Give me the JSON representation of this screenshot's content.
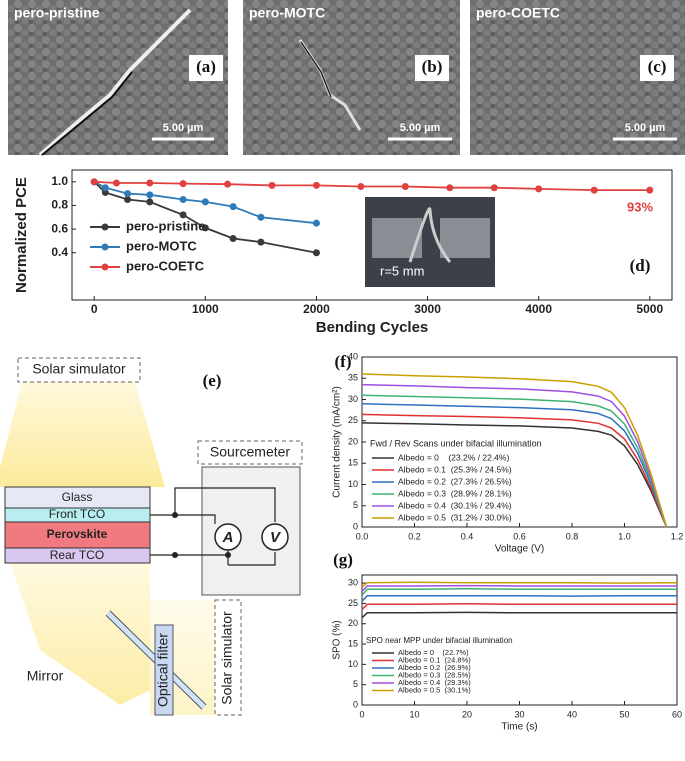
{
  "images": [
    {
      "label": "pero-pristine",
      "panel": "(a)",
      "scale": "5.00 µm"
    },
    {
      "label": "pero-MOTC",
      "panel": "(b)",
      "scale": "5.00 µm"
    },
    {
      "label": "pero-COETC",
      "panel": "(c)",
      "scale": "5.00 µm"
    }
  ],
  "schematic": {
    "panel": "(e)",
    "top_source": "Solar simulator",
    "sourcemeter": "Sourcemeter",
    "layers": [
      "Glass",
      "Front TCO",
      "Perovskite",
      "Rear TCO"
    ],
    "ammeter": "A",
    "voltmeter": "V",
    "mirror": "Mirror",
    "filter": "Optical filter",
    "bottom_source": "Solar simulator"
  },
  "chart_data": [
    {
      "type": "line",
      "panel": "(d)",
      "x_label": "Bending Cycles",
      "y_label": "Normalized PCE",
      "annotation": "93%",
      "inset_label": "r=5 mm",
      "xlim": [
        -200,
        5200
      ],
      "xticks": [
        0,
        1000,
        2000,
        3000,
        4000,
        5000
      ],
      "ylim": [
        0,
        1.1
      ],
      "yticks": [
        0.4,
        0.6,
        0.8,
        {
          "value": 1,
          "label": "1.0"
        }
      ],
      "series": [
        {
          "name": "pero-pristine",
          "color": "#3a3a3a",
          "x": [
            0,
            100,
            300,
            500,
            800,
            1000,
            1250,
            1500,
            2000
          ],
          "values": [
            1.0,
            0.91,
            0.85,
            0.83,
            0.72,
            0.61,
            0.52,
            0.49,
            0.4
          ]
        },
        {
          "name": "pero-MOTC",
          "color": "#2e7bb8",
          "x": [
            0,
            100,
            300,
            500,
            800,
            1000,
            1250,
            1500,
            2000
          ],
          "values": [
            1.0,
            0.95,
            0.9,
            0.89,
            0.85,
            0.83,
            0.79,
            0.7,
            0.65
          ]
        },
        {
          "name": "pero-COETC",
          "color": "#e0403f",
          "x": [
            0,
            200,
            500,
            800,
            1200,
            1600,
            2000,
            2400,
            2800,
            3200,
            3600,
            4000,
            4500,
            5000
          ],
          "values": [
            1.0,
            0.99,
            0.99,
            0.985,
            0.98,
            0.97,
            0.97,
            0.96,
            0.96,
            0.95,
            0.95,
            0.94,
            0.93,
            0.93
          ]
        }
      ]
    },
    {
      "type": "line",
      "panel": "(f)",
      "x_label": "Voltage (V)",
      "y_label": "Current density (mA/cm²)",
      "legend_title": "Fwd / Rev Scans under bifacial illumination",
      "xlim": [
        0,
        1.2
      ],
      "xticks": [
        {
          "value": 0,
          "label": "0.0"
        },
        0.2,
        0.4,
        0.6,
        0.8,
        {
          "value": 1,
          "label": "1.0"
        },
        1.2
      ],
      "ylim": [
        0,
        40
      ],
      "yticks": [
        0,
        5,
        10,
        15,
        20,
        25,
        30,
        35,
        40
      ],
      "x": [
        0,
        0.2,
        0.4,
        0.6,
        0.8,
        0.9,
        0.95,
        1.0,
        1.05,
        1.1,
        1.16
      ],
      "series": [
        {
          "name": "Albedo = 0    (23.2% / 22.4%)",
          "color": "#333333",
          "values": [
            24.5,
            24.3,
            24.0,
            23.8,
            23.3,
            22.5,
            21.6,
            19.1,
            14.7,
            8.6,
            0
          ]
        },
        {
          "name": "Albedo = 0.1  (25.3% / 24.5%)",
          "color": "#e03030",
          "values": [
            26.5,
            26.2,
            26.0,
            25.7,
            25.2,
            24.4,
            23.3,
            20.7,
            15.9,
            9.3,
            0
          ]
        },
        {
          "name": "Albedo = 0.2  (27.3% / 26.5%)",
          "color": "#2f6fc0",
          "values": [
            29,
            28.7,
            28.4,
            28.1,
            27.6,
            26.7,
            25.5,
            22.6,
            17.4,
            10.2,
            0
          ]
        },
        {
          "name": "Albedo = 0.3  (28.9% / 28.1%)",
          "color": "#3cb371",
          "values": [
            31,
            30.7,
            30.4,
            30.1,
            29.5,
            28.5,
            27.3,
            24.2,
            18.6,
            10.9,
            0
          ]
        },
        {
          "name": "Albedo = 0.4  (30.1% / 29.4%)",
          "color": "#a050e0",
          "values": [
            33.5,
            33.2,
            32.8,
            32.5,
            31.8,
            30.8,
            29.5,
            26.1,
            20.1,
            11.7,
            0
          ]
        },
        {
          "name": "Albedo = 0.5  (31.2% / 30.0%)",
          "color": "#c8a000",
          "values": [
            36,
            35.6,
            35.3,
            34.9,
            34.2,
            33.1,
            31.7,
            28.1,
            21.6,
            12.6,
            0
          ]
        }
      ]
    },
    {
      "type": "line",
      "panel": "(g)",
      "x_label": "Time (s)",
      "y_label": "SPO (%)",
      "legend_title": "SPO near MPP under bifacial illumination",
      "xlim": [
        0,
        60
      ],
      "xticks": [
        0,
        10,
        20,
        30,
        40,
        50,
        60
      ],
      "ylim": [
        0,
        32
      ],
      "yticks": [
        0,
        5,
        10,
        15,
        20,
        25,
        30
      ],
      "x": [
        0,
        1,
        10,
        20,
        30,
        40,
        50,
        60
      ],
      "series": [
        {
          "name": "Albedo = 0    (22.7%)",
          "color": "#333333",
          "values": [
            21.5,
            22.7,
            22.7,
            22.8,
            22.7,
            22.7,
            22.7,
            22.7
          ]
        },
        {
          "name": "Albedo = 0.1  (24.8%)",
          "color": "#e03030",
          "values": [
            23.5,
            24.8,
            24.8,
            24.9,
            24.8,
            24.8,
            24.8,
            24.8
          ]
        },
        {
          "name": "Albedo = 0.2  (26.9%)",
          "color": "#2f6fc0",
          "values": [
            25.5,
            26.9,
            26.9,
            26.9,
            26.9,
            26.8,
            26.9,
            26.9
          ]
        },
        {
          "name": "Albedo = 0.3  (28.5%)",
          "color": "#3cb371",
          "values": [
            27,
            28.5,
            28.5,
            28.6,
            28.5,
            28.5,
            28.5,
            28.5
          ]
        },
        {
          "name": "Albedo = 0.4  (29.3%)",
          "color": "#a050e0",
          "values": [
            28,
            29.3,
            29.3,
            29.4,
            29.3,
            29.3,
            29.3,
            29.3
          ]
        },
        {
          "name": "Albedo = 0.5  (30.1%)",
          "color": "#c8a000",
          "values": [
            29,
            30.1,
            30.2,
            30.1,
            30.1,
            30.1,
            30.0,
            30.1
          ]
        }
      ]
    }
  ]
}
